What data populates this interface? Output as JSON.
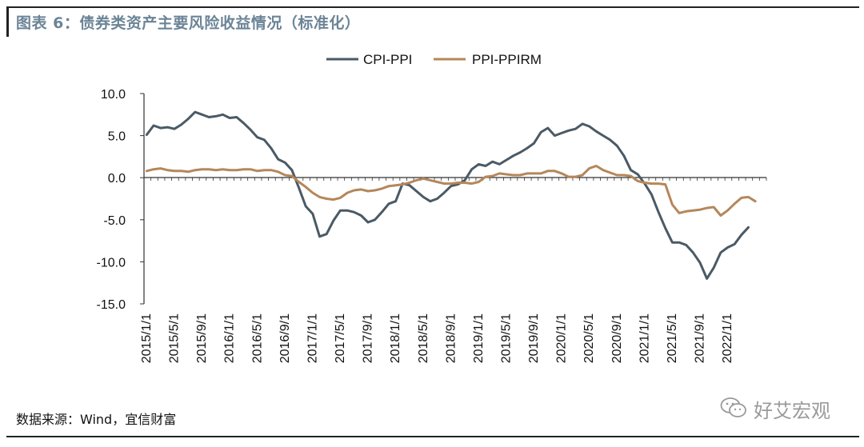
{
  "header": {
    "title": "图表 6：债券类资产主要风险收益情况（标准化）"
  },
  "footer": {
    "source": "数据来源：Wind，宜信财富"
  },
  "watermark": {
    "text": "好艾宏观",
    "icon": "wechat-icon"
  },
  "colors": {
    "cpi_ppi": "#4a5a66",
    "ppi_ppirm": "#b4875a",
    "title": "#6b8496"
  },
  "chart_data": {
    "type": "line",
    "title": "",
    "xlabel": "",
    "ylabel": "",
    "ylim": [
      -15,
      10
    ],
    "yticks": [
      "10.0",
      "5.0",
      "0.0",
      "-5.0",
      "-10.0",
      "-15.0"
    ],
    "ytick_values": [
      10,
      5,
      0,
      -5,
      -10,
      -15
    ],
    "xtick_labels": [
      "2015/1/1",
      "2015/5/1",
      "2015/9/1",
      "2016/1/1",
      "2016/5/1",
      "2016/9/1",
      "2017/1/1",
      "2017/5/1",
      "2017/9/1",
      "2018/1/1",
      "2018/5/1",
      "2018/9/1",
      "2019/1/1",
      "2019/5/1",
      "2019/9/1",
      "2020/1/1",
      "2020/5/1",
      "2020/9/1",
      "2021/1/1",
      "2021/5/1",
      "2021/9/1",
      "2022/1/1"
    ],
    "x_start": "2015-01",
    "x_freq": "monthly",
    "grid": false,
    "legend_position": "top-center",
    "series": [
      {
        "name": "CPI-PPI",
        "color": "#4a5a66",
        "values": [
          5.1,
          6.2,
          5.9,
          6.0,
          5.8,
          6.3,
          7.0,
          7.8,
          7.5,
          7.2,
          7.3,
          7.5,
          7.1,
          7.2,
          6.5,
          5.7,
          4.8,
          4.5,
          3.5,
          2.2,
          1.8,
          0.9,
          -1.2,
          -3.4,
          -4.3,
          -7.0,
          -6.7,
          -5.1,
          -3.9,
          -3.9,
          -4.1,
          -4.5,
          -5.3,
          -5.0,
          -4.1,
          -3.1,
          -2.8,
          -0.7,
          -0.9,
          -1.6,
          -2.3,
          -2.8,
          -2.5,
          -1.8,
          -1.0,
          -0.8,
          -0.3,
          1.0,
          1.6,
          1.4,
          1.9,
          1.6,
          2.1,
          2.6,
          3.0,
          3.5,
          4.1,
          5.4,
          5.9,
          5.0,
          5.3,
          5.6,
          5.8,
          6.4,
          6.1,
          5.5,
          5.0,
          4.5,
          3.8,
          2.6,
          0.9,
          0.4,
          -0.7,
          -2.0,
          -4.1,
          -6.0,
          -7.7,
          -7.7,
          -8.0,
          -8.9,
          -10.1,
          -12.0,
          -10.7,
          -8.9,
          -8.3,
          -7.9,
          -6.8,
          -5.9
        ]
      },
      {
        "name": "PPI-PPIRM",
        "color": "#b4875a",
        "values": [
          0.8,
          1.0,
          1.1,
          0.9,
          0.8,
          0.8,
          0.7,
          0.9,
          1.0,
          1.0,
          0.9,
          1.0,
          0.9,
          0.9,
          1.0,
          1.0,
          0.8,
          0.9,
          0.9,
          0.7,
          0.3,
          0.2,
          -0.5,
          -1.1,
          -1.8,
          -2.3,
          -2.5,
          -2.6,
          -2.4,
          -1.8,
          -1.5,
          -1.4,
          -1.6,
          -1.5,
          -1.3,
          -1.0,
          -0.9,
          -0.8,
          -0.6,
          -0.3,
          -0.1,
          -0.3,
          -0.5,
          -0.7,
          -0.7,
          -0.6,
          -0.6,
          -0.7,
          -0.5,
          0.1,
          0.2,
          0.5,
          0.4,
          0.3,
          0.3,
          0.5,
          0.5,
          0.5,
          0.8,
          0.8,
          0.5,
          0.1,
          0.1,
          0.3,
          1.1,
          1.4,
          0.9,
          0.6,
          0.3,
          0.3,
          0.2,
          -0.4,
          -0.6,
          -0.7,
          -0.7,
          -0.8,
          -3.2,
          -4.2,
          -4.0,
          -3.9,
          -3.8,
          -3.6,
          -3.5,
          -4.5,
          -3.9,
          -3.1,
          -2.4,
          -2.3,
          -2.8
        ]
      }
    ]
  }
}
